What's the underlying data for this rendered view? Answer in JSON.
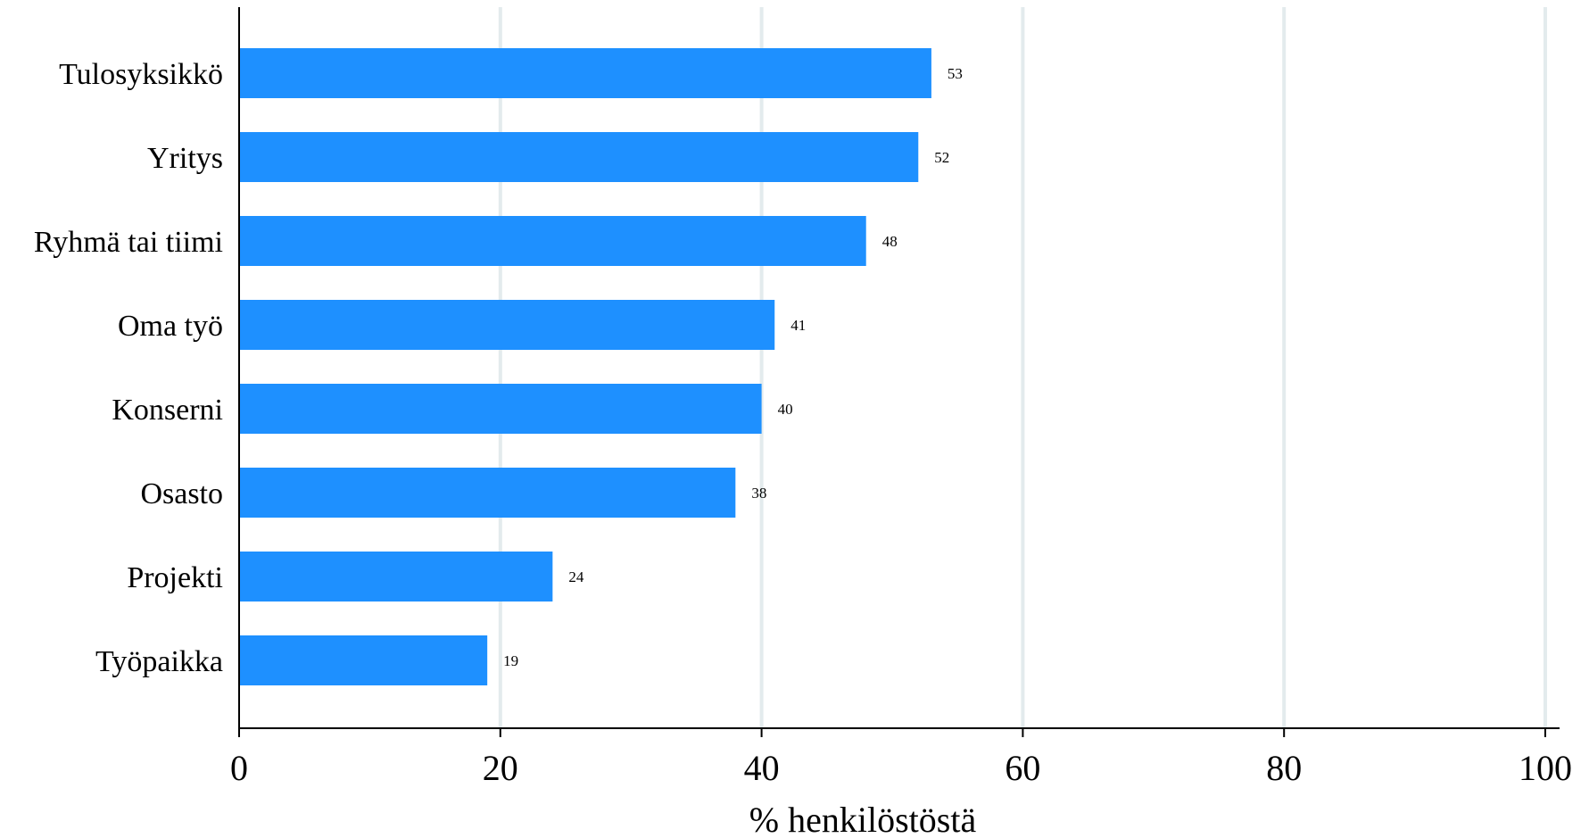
{
  "chart_data": {
    "type": "bar",
    "orientation": "horizontal",
    "categories": [
      "Tulosyksikkö",
      "Yritys",
      "Ryhmä tai tiimi",
      "Oma työ",
      "Konserni",
      "Osasto",
      "Projekti",
      "Työpaikka"
    ],
    "values": [
      53,
      52,
      48,
      41,
      40,
      38,
      24,
      19
    ],
    "value_labels": [
      "53",
      "52",
      "48",
      "41",
      "40",
      "38",
      "24",
      "19"
    ],
    "xlabel": "% henkilöstöstä",
    "ylabel": "",
    "title": "",
    "xlim": [
      0,
      100
    ],
    "xticks": [
      0,
      20,
      40,
      60,
      80,
      100
    ],
    "xtick_labels": [
      "0",
      "20",
      "40",
      "60",
      "80",
      "100"
    ],
    "grid": "vertical",
    "legend": "none",
    "colors": {
      "bar": "#1e90ff",
      "grid": "#e3ebed",
      "axis": "#000000"
    }
  }
}
